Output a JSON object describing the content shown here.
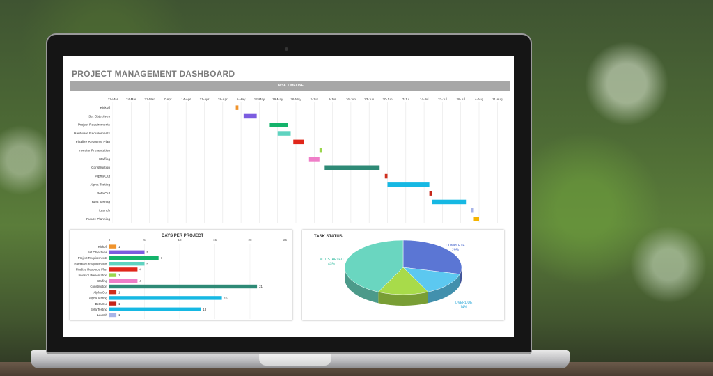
{
  "screen": {
    "dashboard_title": "PROJECT MANAGEMENT DASHBOARD",
    "timeline_header": "TASK TIMELINE"
  },
  "colors": {
    "kickoff": "#f0932b",
    "set_objectives": "#7b5ce0",
    "project_requirements": "#14b36b",
    "hardware_requirements": "#5fd3c0",
    "finalize_resource_plan": "#e0261a",
    "investor_presentation": "#9ad64d",
    "staffing": "#ef7ec8",
    "construction": "#2e8a76",
    "alpha_out": "#cf2f1e",
    "alpha_testing": "#16b8e3",
    "beta_out": "#c52619",
    "beta_testing": "#16b8e3",
    "launch": "#a8b4e8",
    "future_planning": "#f5b400"
  },
  "chart_data": [
    {
      "type": "bar",
      "subtype": "gantt",
      "title": "TASK TIMELINE",
      "x_ticks": [
        "17-Mar",
        "24-Mar",
        "31-Mar",
        "7-Apr",
        "14-Apr",
        "21-Apr",
        "28-Apr",
        "5-May",
        "12-May",
        "19-May",
        "26-May",
        "2-Jun",
        "9-Jun",
        "16-Jun",
        "23-Jun",
        "30-Jun",
        "7-Jul",
        "14-Jul",
        "21-Jul",
        "28-Jul",
        "4-Aug",
        "11-Aug"
      ],
      "tasks": [
        {
          "name": "Kickoff",
          "start": "2014-05-03",
          "days": 1,
          "color": "#f0932b"
        },
        {
          "name": "Set Objectives",
          "start": "2014-05-06",
          "days": 5,
          "color": "#7b5ce0"
        },
        {
          "name": "Project Requirements",
          "start": "2014-05-16",
          "days": 7,
          "color": "#14b36b"
        },
        {
          "name": "Hardware Requirements",
          "start": "2014-05-19",
          "days": 5,
          "color": "#5fd3c0"
        },
        {
          "name": "Finalize Resource Plan",
          "start": "2014-05-25",
          "days": 4,
          "color": "#e0261a"
        },
        {
          "name": "Investor Presentation",
          "start": "2014-06-04",
          "days": 1,
          "color": "#9ad64d"
        },
        {
          "name": "Staffing",
          "start": "2014-05-31",
          "days": 4,
          "color": "#ef7ec8"
        },
        {
          "name": "Construction",
          "start": "2014-06-06",
          "days": 21,
          "color": "#2e8a76"
        },
        {
          "name": "Alpha Out",
          "start": "2014-06-29",
          "days": 1,
          "color": "#cf2f1e"
        },
        {
          "name": "Alpha Testing",
          "start": "2014-06-30",
          "days": 16,
          "color": "#16b8e3"
        },
        {
          "name": "Beta Out",
          "start": "2014-07-16",
          "days": 1,
          "color": "#c52619"
        },
        {
          "name": "Beta Testing",
          "start": "2014-07-17",
          "days": 13,
          "color": "#16b8e3"
        },
        {
          "name": "Launch",
          "start": "2014-08-01",
          "days": 1,
          "color": "#a8b4e8"
        },
        {
          "name": "Future Planning",
          "start": "2014-08-02",
          "days": 2,
          "color": "#f5b400"
        }
      ]
    },
    {
      "type": "bar",
      "orientation": "horizontal",
      "title": "DAYS PER PROJECT",
      "x_ticks": [
        "0",
        "5",
        "10",
        "15",
        "20",
        "25"
      ],
      "xlim": [
        0,
        25
      ],
      "categories": [
        "Kickoff",
        "Set Objectives",
        "Project Requirements",
        "Hardware Requirements",
        "Finalize Resource Plan",
        "Investor Presentation",
        "Staffing",
        "Construction",
        "Alpha Out",
        "Alpha Testing",
        "Beta Out",
        "Beta Testing",
        "Launch"
      ],
      "values": [
        1,
        5,
        7,
        5,
        4,
        1,
        4,
        21,
        1,
        16,
        1,
        13,
        1
      ],
      "value_labels": [
        "1",
        "5",
        "7",
        "5",
        "4",
        "1",
        "4",
        "21",
        "1",
        "16",
        "1",
        "13",
        "1"
      ],
      "colors": [
        "#f0932b",
        "#7b5ce0",
        "#14b36b",
        "#5fd3c0",
        "#e0261a",
        "#9ad64d",
        "#ef7ec8",
        "#2e8a76",
        "#cf2f1e",
        "#16b8e3",
        "#c52619",
        "#16b8e3",
        "#a8b4e8"
      ]
    },
    {
      "type": "pie",
      "style": "3d",
      "title": "TASK STATUS",
      "slices": [
        {
          "label": "COMPLETE",
          "pct_label": "29%",
          "value": 29,
          "color": "#5b76d4",
          "label_color": "#3c5cc9"
        },
        {
          "label": "OVERDUE",
          "pct_label": "14%",
          "value": 14,
          "color": "#5cc8f0",
          "label_color": "#2aa7d8"
        },
        {
          "label": "",
          "pct_label": "",
          "value": 14,
          "color": "#a8db4a",
          "label_color": "#78b52a"
        },
        {
          "label": "NOT STARTED",
          "pct_label": "43%",
          "value": 43,
          "color": "#6ad6c0",
          "label_color": "#2fb99d"
        }
      ]
    }
  ]
}
